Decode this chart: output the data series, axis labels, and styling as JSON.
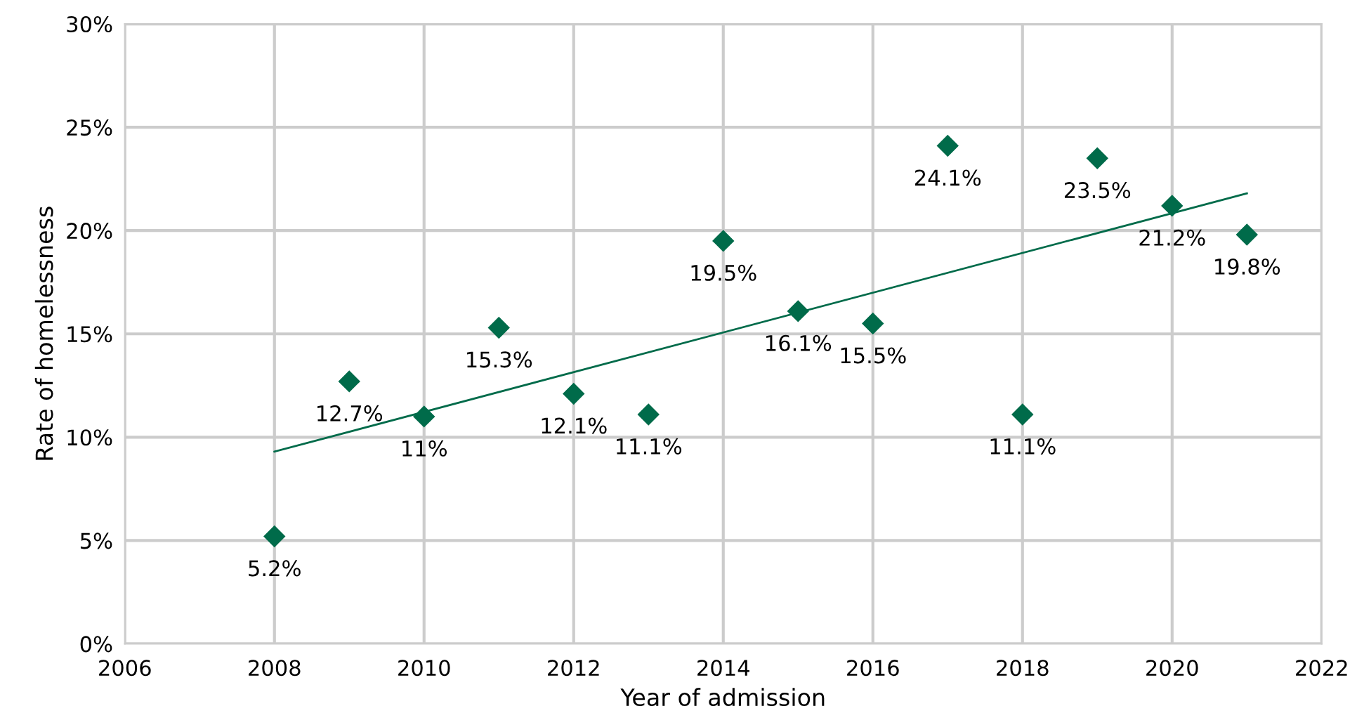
{
  "chart_data": {
    "type": "scatter",
    "xlabel": "Year of admission",
    "ylabel": "Rate of homelessness",
    "xlim": [
      2006,
      2022
    ],
    "xticks": [
      2006,
      2008,
      2010,
      2012,
      2014,
      2016,
      2018,
      2020,
      2022
    ],
    "ylim": [
      0,
      30
    ],
    "yticks": [
      {
        "value": 0,
        "label": "0%"
      },
      {
        "value": 5,
        "label": "5%"
      },
      {
        "value": 10,
        "label": "10%"
      },
      {
        "value": 15,
        "label": "15%"
      },
      {
        "value": 20,
        "label": "20%"
      },
      {
        "value": 25,
        "label": "25%"
      },
      {
        "value": 30,
        "label": "30%"
      }
    ],
    "grid": true,
    "legend": false,
    "series": [
      {
        "marker": "diamond",
        "color": "#006b4a",
        "x": [
          2008,
          2009,
          2010,
          2011,
          2012,
          2013,
          2014,
          2015,
          2016,
          2017,
          2018,
          2019,
          2020,
          2021
        ],
        "values": [
          5.2,
          12.7,
          11,
          15.3,
          12.1,
          11.1,
          19.5,
          16.1,
          15.5,
          24.1,
          11.1,
          23.5,
          21.2,
          19.8
        ],
        "value_labels": [
          "5.2%",
          "12.7%",
          "11%",
          "15.3%",
          "12.1%",
          "11.1%",
          "19.5%",
          "16.1%",
          "15.5%",
          "24.1%",
          "11.1%",
          "23.5%",
          "21.2%",
          "19.8%"
        ]
      },
      {
        "type": "line",
        "marker": "none",
        "color": "#006b4a",
        "x": [
          2008,
          2021
        ],
        "values": [
          9.3,
          21.8
        ]
      }
    ]
  }
}
